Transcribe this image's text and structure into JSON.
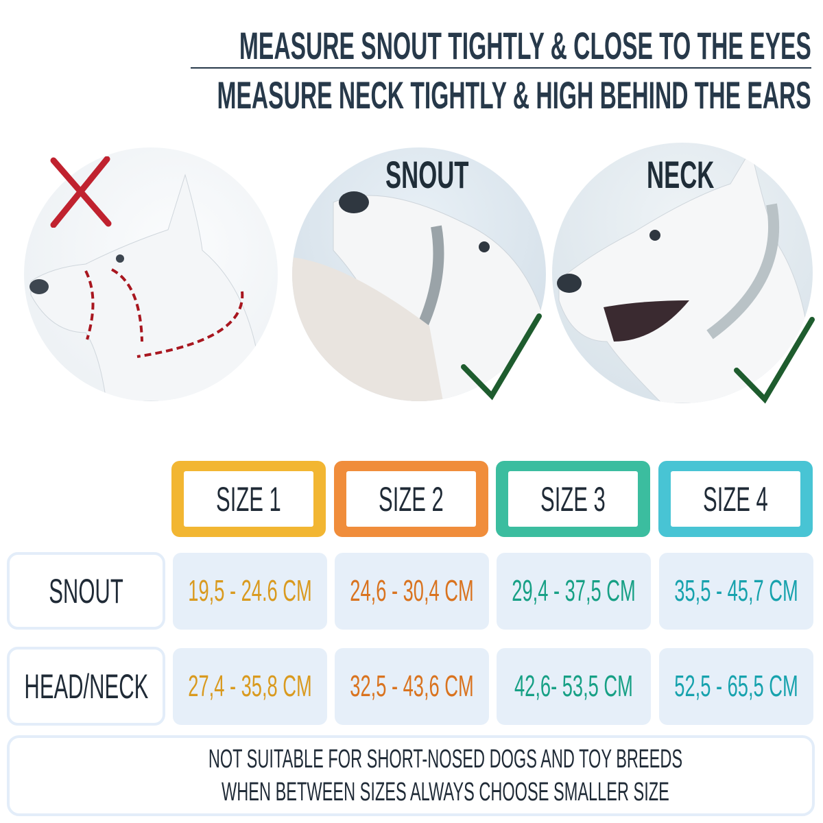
{
  "header": {
    "line1": "MEASURE SNOUT TIGHTLY & CLOSE TO THE EYES",
    "line2": "MEASURE NECK TIGHTLY & HIGH BEHIND THE EARS"
  },
  "photos": [
    {
      "label": "",
      "mark": "cross-icon",
      "mark_color": "#c0222f"
    },
    {
      "label": "SNOUT",
      "mark": "check-icon",
      "mark_color": "#1e5c2e"
    },
    {
      "label": "NECK",
      "mark": "check-icon",
      "mark_color": "#1e5c2e"
    }
  ],
  "table": {
    "sizes": [
      {
        "label": "SIZE 1",
        "color": "#f2b632",
        "text_color": "#d99a1f"
      },
      {
        "label": "SIZE 2",
        "color": "#f08d3b",
        "text_color": "#d9731f"
      },
      {
        "label": "SIZE 3",
        "color": "#3bbd9f",
        "text_color": "#17a085"
      },
      {
        "label": "SIZE 4",
        "color": "#48c4d4",
        "text_color": "#17a2ad"
      }
    ],
    "rows": [
      {
        "label": "SNOUT",
        "values": [
          "19,5 - 24.6 CM",
          "24,6 - 30,4 CM",
          "29,4 - 37,5 CM",
          "35,5 - 45,7 CM"
        ]
      },
      {
        "label": "HEAD/NECK",
        "values": [
          "27,4 - 35,8 CM",
          "32,5 - 43,6 CM",
          "42,6- 53,5 CM",
          "52,5 - 65,5 CM"
        ]
      }
    ]
  },
  "footer": {
    "line1": "NOT SUITABLE FOR SHORT-NOSED DOGS AND TOY BREEDS",
    "line2": "WHEN BETWEEN SIZES ALWAYS CHOOSE SMALLER SIZE"
  }
}
